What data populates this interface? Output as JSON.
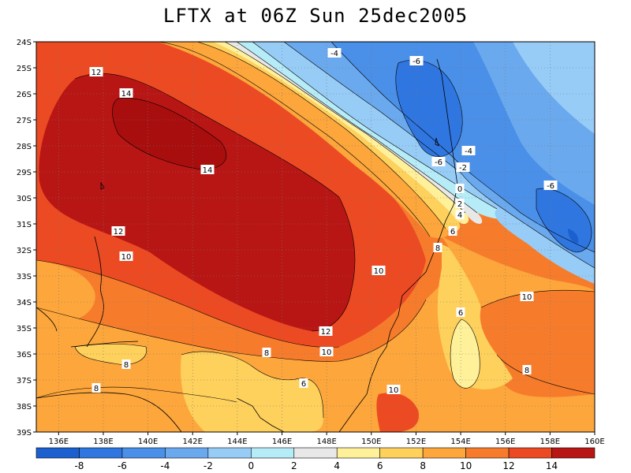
{
  "title": "LFTX at 06Z Sun 25dec2005",
  "map": {
    "lon_range": [
      135,
      160
    ],
    "lat_range": [
      -39,
      -24
    ],
    "lon_ticks": [
      "136E",
      "138E",
      "140E",
      "142E",
      "144E",
      "146E",
      "148E",
      "150E",
      "152E",
      "154E",
      "156E",
      "158E",
      "160E"
    ],
    "lat_ticks": [
      "24S",
      "25S",
      "26S",
      "27S",
      "28S",
      "29S",
      "30S",
      "31S",
      "32S",
      "33S",
      "34S",
      "35S",
      "36S",
      "37S",
      "38S",
      "39S"
    ],
    "grid": "dotted"
  },
  "contour_labels": [
    "12",
    "14",
    "14",
    "12",
    "10",
    "10",
    "12",
    "10",
    "8",
    "8",
    "6",
    "10",
    "8",
    "10",
    "8",
    "6",
    "8",
    "-4",
    "-6",
    "-6",
    "-4",
    "-2",
    "0",
    "2",
    "4",
    "6",
    "-6"
  ],
  "colorbar": {
    "labels": [
      "-8",
      "-6",
      "-4",
      "-2",
      "0",
      "2",
      "4",
      "6",
      "8",
      "10",
      "12",
      "14"
    ],
    "colors": [
      "#1c5fcf",
      "#2f76e0",
      "#4a8fe8",
      "#6aa9ee",
      "#97ccf7",
      "#b6ecf8",
      "#e8e8e8",
      "#fff19a",
      "#fed05c",
      "#fca63c",
      "#f67c2c",
      "#ec4a22",
      "#b81614"
    ]
  }
}
